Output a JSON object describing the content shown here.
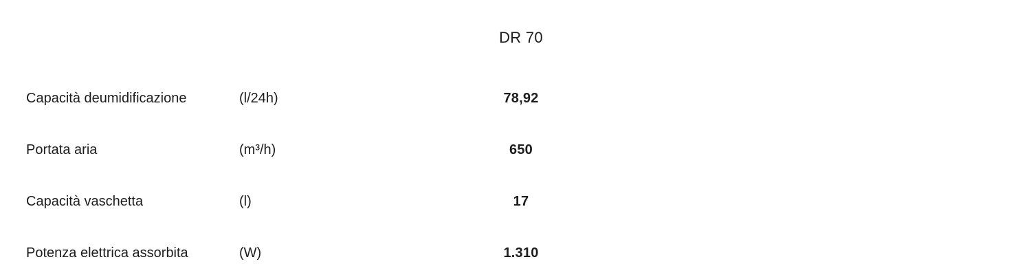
{
  "page": {
    "background_color": "#ffffff",
    "text_color": "#1d1d1d"
  },
  "table": {
    "product_title": "DR 70",
    "columns": [
      "label",
      "unit",
      "value"
    ],
    "rows": [
      {
        "label": "Capacità deumidificazione",
        "unit": "(l/24h)",
        "value": "78,92"
      },
      {
        "label": "Portata aria",
        "unit": "(m³/h)",
        "value": "650"
      },
      {
        "label": "Capacità vaschetta",
        "unit": "(l)",
        "value": "17"
      },
      {
        "label": "Potenza elettrica assorbita",
        "unit": "(W)",
        "value": "1.310"
      }
    ]
  }
}
